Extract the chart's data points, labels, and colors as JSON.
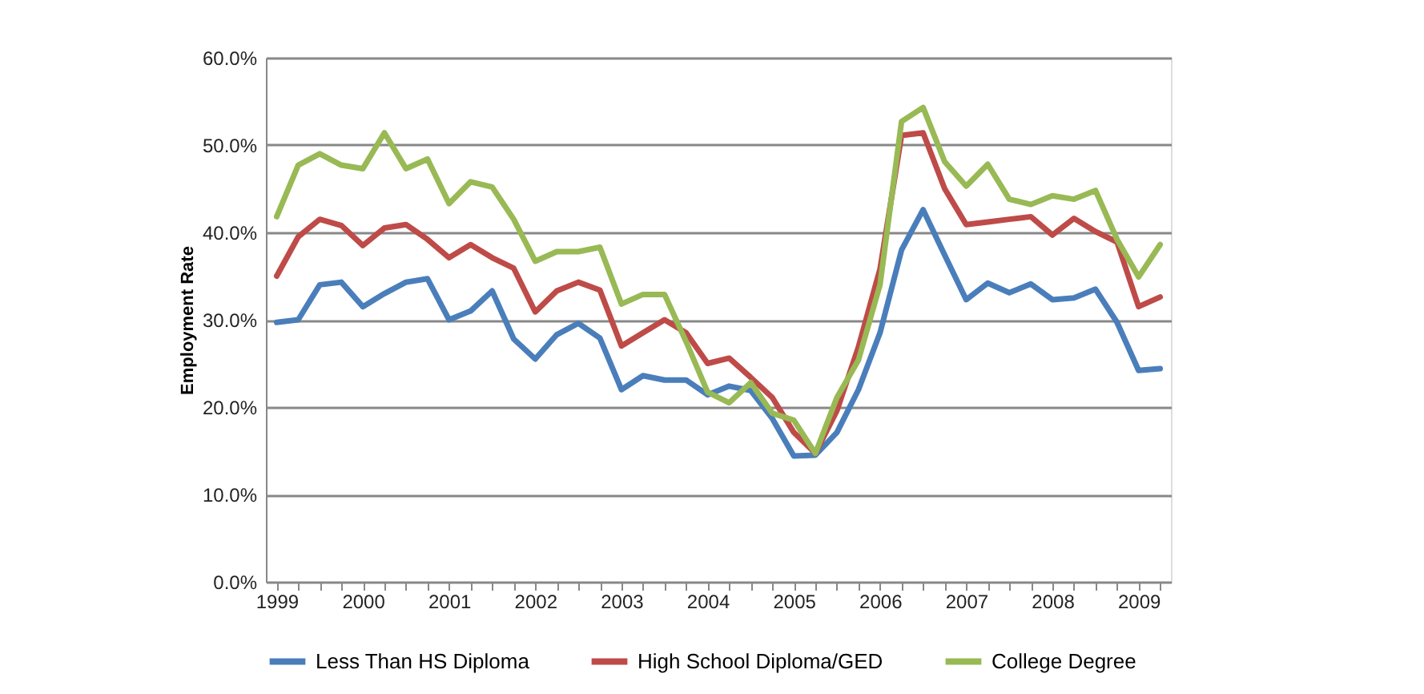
{
  "chart_data": {
    "type": "line",
    "ylabel": "Employment Rate",
    "categories": [
      "1999",
      null,
      null,
      null,
      "2000",
      null,
      null,
      null,
      "2001",
      null,
      null,
      null,
      "2002",
      null,
      null,
      null,
      "2003",
      null,
      null,
      null,
      "2004",
      null,
      null,
      null,
      "2005",
      null,
      null,
      null,
      "2006",
      null,
      null,
      null,
      "2007",
      null,
      null,
      null,
      "2008",
      null,
      null,
      null,
      "2009",
      null
    ],
    "series": [
      {
        "name": "Less Than HS Diploma",
        "color": "#4a7ebb",
        "values": [
          29.7,
          30.0,
          34.0,
          34.3,
          31.5,
          33.0,
          34.3,
          34.7,
          30.0,
          31.0,
          33.3,
          27.8,
          25.5,
          28.3,
          29.6,
          27.9,
          22.0,
          23.6,
          23.1,
          23.1,
          21.4,
          22.4,
          21.9,
          18.7,
          14.4,
          14.5,
          17.1,
          22.0,
          28.5,
          38.0,
          42.6,
          37.4,
          32.3,
          34.2,
          33.1,
          34.1,
          32.3,
          32.5,
          33.5,
          29.7,
          24.2,
          24.4
        ]
      },
      {
        "name": "High School Diploma/GED",
        "color": "#be4b48",
        "values": [
          35.0,
          39.5,
          41.5,
          40.8,
          38.5,
          40.5,
          40.9,
          39.2,
          37.1,
          38.6,
          37.1,
          35.9,
          30.9,
          33.3,
          34.3,
          33.4,
          27.0,
          28.5,
          30.0,
          28.5,
          25.0,
          25.6,
          23.4,
          21.1,
          17.1,
          14.7,
          19.6,
          26.9,
          35.8,
          51.1,
          51.4,
          45.0,
          40.9,
          41.2,
          41.5,
          41.8,
          39.7,
          41.6,
          40.1,
          38.9,
          31.5,
          32.6
        ]
      },
      {
        "name": "College Degree",
        "color": "#98b954",
        "values": [
          41.8,
          47.7,
          49.0,
          47.7,
          47.3,
          51.4,
          47.3,
          48.4,
          43.3,
          45.8,
          45.2,
          41.5,
          36.7,
          37.8,
          37.8,
          38.3,
          31.8,
          32.9,
          32.9,
          27.5,
          21.7,
          20.5,
          22.8,
          19.3,
          18.5,
          14.7,
          21.1,
          25.4,
          34.0,
          52.7,
          54.3,
          48.1,
          45.3,
          47.8,
          43.8,
          43.2,
          44.2,
          43.8,
          44.8,
          39.2,
          34.9,
          38.6
        ]
      }
    ],
    "ylim": [
      0,
      60
    ],
    "yticks": [
      {
        "value": 0,
        "label": "0.0%"
      },
      {
        "value": 10,
        "label": "10.0%"
      },
      {
        "value": 20,
        "label": "20.0%"
      },
      {
        "value": 30,
        "label": "30.0%"
      },
      {
        "value": 40,
        "label": "40.0%"
      },
      {
        "value": 50,
        "label": "50.0%"
      },
      {
        "value": 60,
        "label": "60.0%"
      }
    ],
    "grid": "y",
    "legend": "bottom",
    "marker": "none",
    "line_style": "solid"
  }
}
